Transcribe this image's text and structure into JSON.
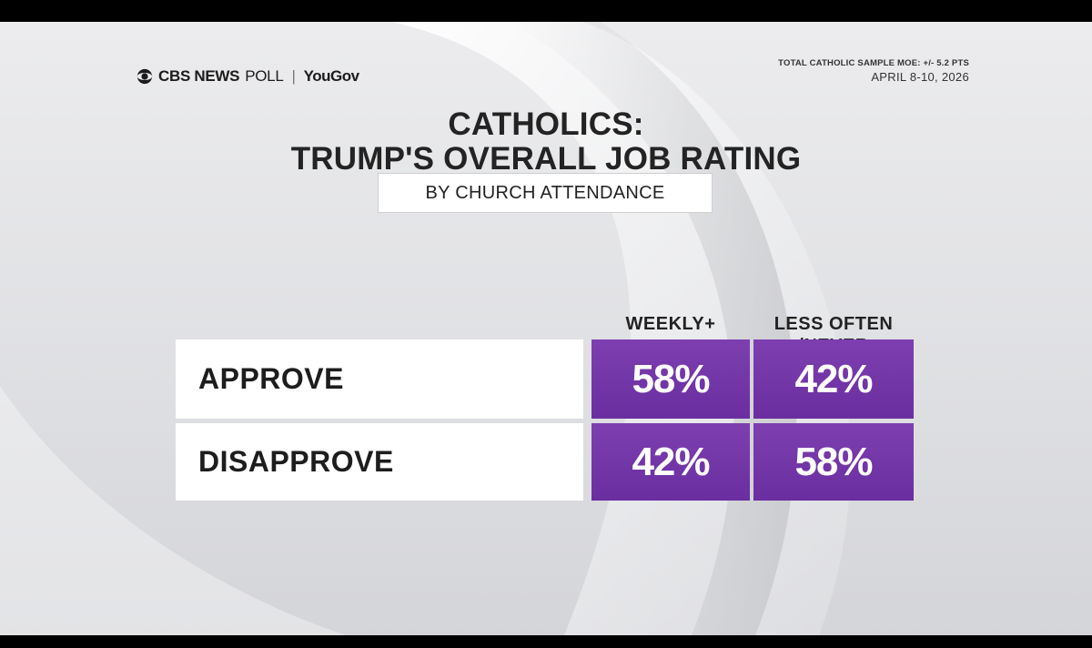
{
  "header": {
    "brand_cbs": "CBS NEWS",
    "brand_poll": "POLL",
    "brand_sep": "|",
    "brand_yougov": "YouGov",
    "moe": "TOTAL CATHOLIC SAMPLE MOE: +/- 5.2 PTS",
    "date": "APRIL 8-10, 2026"
  },
  "chart_data": {
    "type": "table",
    "title_line1": "CATHOLICS:",
    "title_line2": "TRUMP'S OVERALL JOB RATING",
    "subtitle": "BY CHURCH ATTENDANCE",
    "columns": [
      {
        "line1": "",
        "line2": "WEEKLY+"
      },
      {
        "line1": "LESS OFTEN",
        "line2": "/NEVER"
      }
    ],
    "rows": [
      {
        "label": "APPROVE",
        "values": [
          "58%",
          "42%"
        ]
      },
      {
        "label": "DISAPPROVE",
        "values": [
          "42%",
          "58%"
        ]
      }
    ],
    "accent_color": "#6f32a5"
  }
}
